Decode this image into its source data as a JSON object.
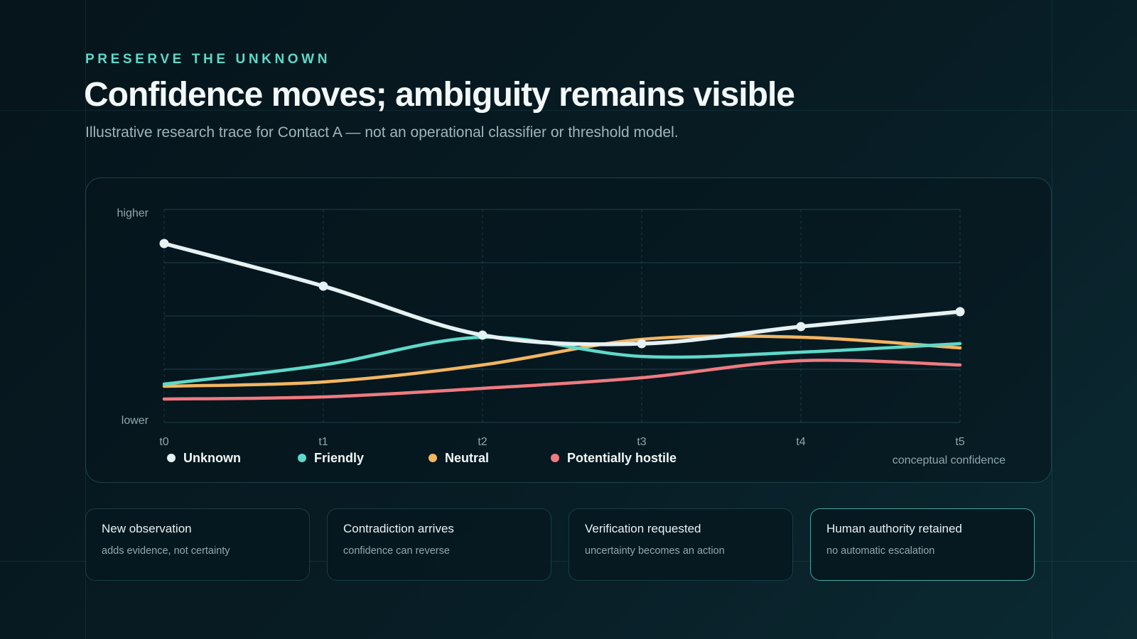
{
  "header": {
    "eyebrow": "PRESERVE THE UNKNOWN",
    "title": "Confidence moves; ambiguity remains visible",
    "subtitle": "Illustrative research trace for Contact A — not an operational classifier or threshold model."
  },
  "chart_data": {
    "type": "line",
    "x": [
      "t0",
      "t1",
      "t2",
      "t3",
      "t4",
      "t5"
    ],
    "y_labels": {
      "top": "higher",
      "bottom": "lower"
    },
    "ylim": [
      0,
      1
    ],
    "grid": true,
    "axis_caption": "conceptual confidence",
    "legend_position": "bottom-left",
    "series": [
      {
        "name": "Unknown",
        "color": "#e6f1f3",
        "values": [
          0.84,
          0.64,
          0.41,
          0.37,
          0.45,
          0.52
        ],
        "markers": true
      },
      {
        "name": "Friendly",
        "color": "#5ed9c9",
        "values": [
          0.18,
          0.27,
          0.4,
          0.31,
          0.33,
          0.37
        ],
        "markers": false
      },
      {
        "name": "Neutral",
        "color": "#f3b562",
        "values": [
          0.17,
          0.19,
          0.27,
          0.39,
          0.4,
          0.35
        ],
        "markers": false
      },
      {
        "name": "Potentially hostile",
        "color": "#ef7a80",
        "values": [
          0.11,
          0.12,
          0.16,
          0.21,
          0.29,
          0.27
        ],
        "markers": false
      }
    ]
  },
  "cards": [
    {
      "title": "New observation",
      "subtitle": "adds evidence, not certainty",
      "highlight": false
    },
    {
      "title": "Contradiction arrives",
      "subtitle": "confidence can reverse",
      "highlight": false
    },
    {
      "title": "Verification requested",
      "subtitle": "uncertainty becomes an action",
      "highlight": false
    },
    {
      "title": "Human authority retained",
      "subtitle": "no automatic escalation",
      "highlight": true
    }
  ]
}
